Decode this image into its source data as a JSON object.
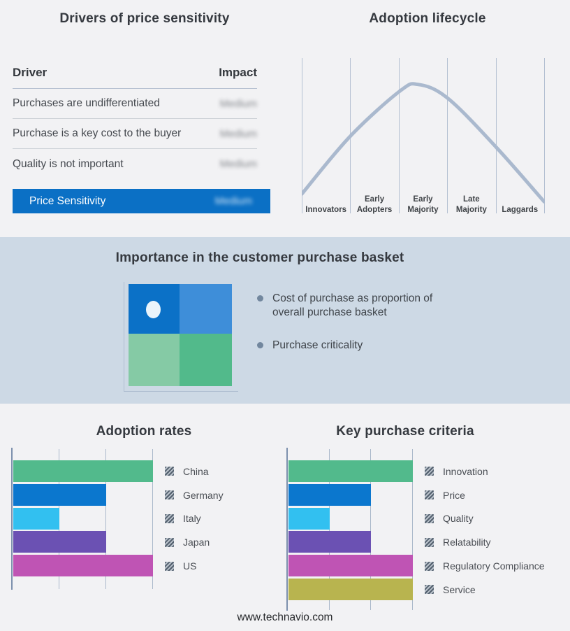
{
  "page": {
    "background": "#f2f2f4",
    "band_background": "#cdd9e5"
  },
  "footer": {
    "text": "www.technavio.com"
  },
  "drivers": {
    "title": "Drivers of price sensitivity",
    "columns": {
      "driver": "Driver",
      "impact": "Impact"
    },
    "rows": [
      {
        "driver": "Purchases are undifferentiated",
        "impact": "Medium",
        "impact_blurred": true
      },
      {
        "driver": "Purchase is a key cost to the buyer",
        "impact": "Medium",
        "impact_blurred": true
      },
      {
        "driver": "Quality is not important",
        "impact": "Medium",
        "impact_blurred": true
      }
    ],
    "summary": {
      "label": "Price Sensitivity",
      "impact": "Medium",
      "impact_blurred": true,
      "bar_color": "#0b70c5"
    }
  },
  "lifecycle": {
    "title": "Adoption lifecycle",
    "stages": [
      "Innovators",
      "Early Adopters",
      "Early Majority",
      "Late Majority",
      "Laggards"
    ]
  },
  "basket": {
    "title": "Importance in the customer purchase basket",
    "bullets": [
      "Cost of purchase as proportion of overall purchase basket",
      "Purchase criticality"
    ],
    "quadrant_colors": {
      "tl": "#0b71c7",
      "tr": "#3e8ed9",
      "bl": "#85caa5",
      "br": "#52ba8b"
    },
    "dot_color": "#eaf4fb"
  },
  "chart_data": [
    {
      "type": "line",
      "title": "Adoption lifecycle",
      "x_categories": [
        "Innovators",
        "Early Adopters",
        "Early Majority",
        "Late Majority",
        "Laggards"
      ],
      "line_color": "#aab9ce",
      "grid": true,
      "legend": false,
      "note": "Bell-shaped diffusion curve, no numeric axes shown; peak within Early Majority",
      "curve_points": [
        [
          0,
          0.09
        ],
        [
          0.199,
          0.566
        ],
        [
          0.403,
          0.938
        ],
        [
          0.479,
          0.996
        ],
        [
          0.601,
          0.884
        ],
        [
          0.801,
          0.48
        ],
        [
          1,
          0.027
        ]
      ]
    },
    {
      "type": "bar",
      "title": "Adoption rates",
      "orientation": "horizontal",
      "categories": [
        "China",
        "Germany",
        "Italy",
        "Japan",
        "US"
      ],
      "values": [
        3,
        2,
        1,
        2,
        3
      ],
      "xlim": [
        0,
        3
      ],
      "units": "relative gridline units (no axis labels shown)",
      "colors": [
        "#52ba8c",
        "#0b77ce",
        "#32c0f0",
        "#6b51b3",
        "#bf54b4"
      ],
      "grid": true,
      "legend_position": "right"
    },
    {
      "type": "bar",
      "title": "Key purchase criteria",
      "orientation": "horizontal",
      "categories": [
        "Innovation",
        "Price",
        "Quality",
        "Relatability",
        "Regulatory Compliance",
        "Service"
      ],
      "values": [
        3,
        2,
        1,
        2,
        3,
        3
      ],
      "xlim": [
        0,
        3
      ],
      "units": "relative gridline units (no axis labels shown)",
      "colors": [
        "#52ba8c",
        "#0b77ce",
        "#32c0f0",
        "#6b51b3",
        "#bf54b4",
        "#b8b44f"
      ],
      "grid": true,
      "legend_position": "right"
    }
  ]
}
